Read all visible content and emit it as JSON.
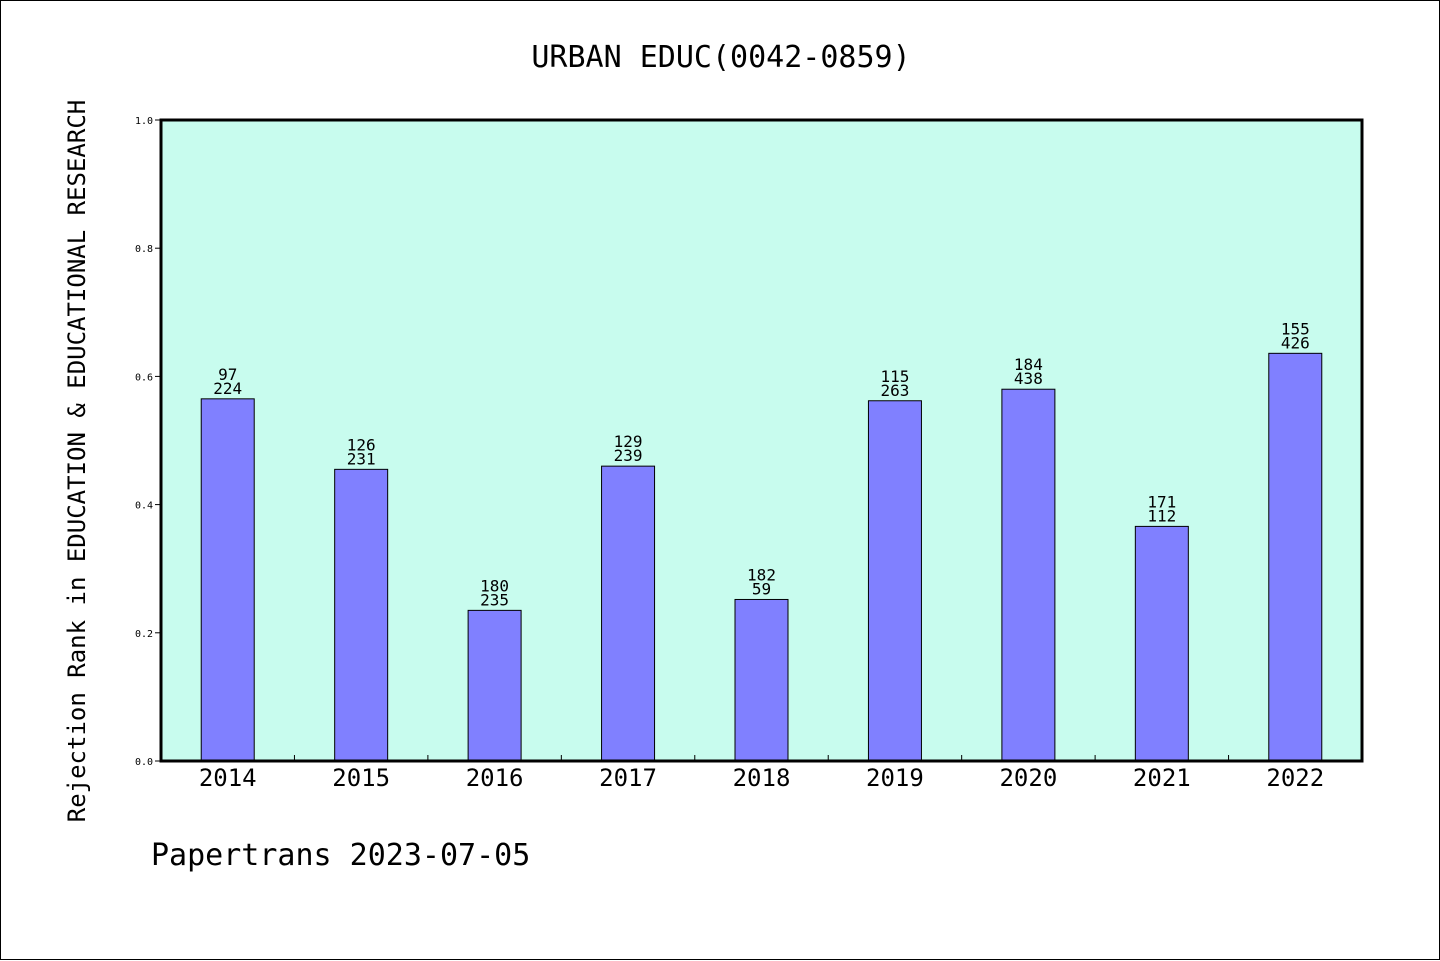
{
  "chart_data": {
    "type": "bar",
    "title": "URBAN EDUC(0042-0859)",
    "ylabel": "Rejection Rank in EDUCATION & EDUCATIONAL RESEARCH",
    "xlabel": "",
    "ylim": [
      0,
      1.0
    ],
    "yticks": [
      "0.0",
      "0.2",
      "0.4",
      "0.6",
      "0.8",
      "1.0"
    ],
    "categories": [
      "2014",
      "2015",
      "2016",
      "2017",
      "2018",
      "2019",
      "2020",
      "2021",
      "2022"
    ],
    "values": [
      0.565,
      0.455,
      0.235,
      0.46,
      0.252,
      0.562,
      0.58,
      0.366,
      0.636
    ],
    "labels_top": [
      "97",
      "126",
      "180",
      "129",
      "182",
      "115",
      "184",
      "171",
      "155"
    ],
    "labels_bottom": [
      "224",
      "231",
      "235",
      "239",
      "59",
      "263",
      "438",
      "112",
      "426"
    ],
    "grid": false,
    "plot_background": "#c8fcee",
    "bar_color": "#8080ff",
    "bar_edge_color": "#000000"
  },
  "footer": "Papertrans 2023-07-05"
}
